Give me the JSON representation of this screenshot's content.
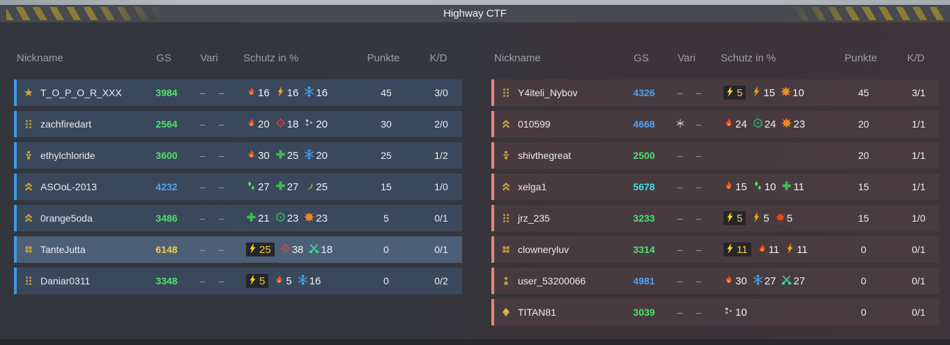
{
  "title": "Highway CTF",
  "columns": {
    "nickname": "Nickname",
    "gs": "GS",
    "vari": "Vari",
    "schutz": "Schutz in %",
    "punkte": "Punkte",
    "kd": "K/D"
  },
  "colors": {
    "team_left_accent": "#3e9ae0",
    "team_right_accent": "#e8837f",
    "gs_green": "#4de36a",
    "gs_blue": "#4da4f5",
    "gs_cyan": "#3fdde2",
    "gs_yellow": "#f5d340",
    "titlebar": "#46494f",
    "hazard_yellow": "#8e7c33"
  },
  "teams": [
    {
      "side": "left",
      "players": [
        {
          "rank_icon": "star",
          "nickname": "T_O_P_O_R_XXX",
          "gs": "3984",
          "gs_color": "green",
          "vari": [
            "dash",
            "dash"
          ],
          "schutz": [
            {
              "icon": "fire",
              "value": "16"
            },
            {
              "icon": "bolt",
              "value": "16"
            },
            {
              "icon": "snowflake",
              "value": "16"
            }
          ],
          "punkte": "45",
          "kd": "3/0",
          "highlight": false
        },
        {
          "rank_icon": "dots-six",
          "nickname": "zachfiredart",
          "gs": "2564",
          "gs_color": "green",
          "vari": [
            "dash",
            "dash"
          ],
          "schutz": [
            {
              "icon": "fire",
              "value": "20"
            },
            {
              "icon": "target",
              "value": "18"
            },
            {
              "icon": "dots",
              "value": "20"
            }
          ],
          "punkte": "30",
          "kd": "2/0",
          "highlight": false
        },
        {
          "rank_icon": "tower",
          "nickname": "ethylchloride",
          "gs": "3600",
          "gs_color": "green",
          "vari": [
            "dash",
            "dash"
          ],
          "schutz": [
            {
              "icon": "fire",
              "value": "30"
            },
            {
              "icon": "plus",
              "value": "25"
            },
            {
              "icon": "snowflake",
              "value": "20"
            }
          ],
          "punkte": "25",
          "kd": "1/2",
          "highlight": false
        },
        {
          "rank_icon": "chevrons",
          "nickname": "ASOoL-2013",
          "gs": "4232",
          "gs_color": "blue",
          "vari": [
            "dash",
            "dash"
          ],
          "schutz": [
            {
              "icon": "drops",
              "value": "27"
            },
            {
              "icon": "plus",
              "value": "27"
            },
            {
              "icon": "banana",
              "value": "25"
            }
          ],
          "punkte": "15",
          "kd": "1/0",
          "highlight": false
        },
        {
          "rank_icon": "chevrons",
          "nickname": "0range5oda",
          "gs": "3486",
          "gs_color": "green",
          "vari": [
            "dash",
            "dash"
          ],
          "schutz": [
            {
              "icon": "plus",
              "value": "21"
            },
            {
              "icon": "hexagon",
              "value": "23"
            },
            {
              "icon": "star8",
              "value": "23"
            }
          ],
          "punkte": "5",
          "kd": "0/1",
          "highlight": false
        },
        {
          "rank_icon": "squares-four",
          "nickname": "TanteJutta",
          "gs": "6148",
          "gs_color": "yellow",
          "vari": [
            "dash",
            "dash"
          ],
          "schutz": [
            {
              "icon": "bolt-boxed",
              "value": "25"
            },
            {
              "icon": "target",
              "value": "38"
            },
            {
              "icon": "scissors",
              "value": "18"
            }
          ],
          "punkte": "0",
          "kd": "0/1",
          "highlight": true
        },
        {
          "rank_icon": "dots-six",
          "nickname": "Daniar0311",
          "gs": "3348",
          "gs_color": "green",
          "vari": [
            "dash",
            "dash"
          ],
          "schutz": [
            {
              "icon": "bolt-boxed",
              "value": "5"
            },
            {
              "icon": "fire",
              "value": "5"
            },
            {
              "icon": "snowflake",
              "value": "16"
            }
          ],
          "punkte": "0",
          "kd": "0/2",
          "highlight": false
        }
      ]
    },
    {
      "side": "right",
      "players": [
        {
          "rank_icon": "dots-six",
          "nickname": "Y4iteli_Nybov",
          "gs": "4326",
          "gs_color": "blue",
          "vari": [
            "dash",
            "dash"
          ],
          "schutz": [
            {
              "icon": "bolt-boxed",
              "value": "5"
            },
            {
              "icon": "bolt",
              "value": "15"
            },
            {
              "icon": "star8",
              "value": "10"
            }
          ],
          "punkte": "45",
          "kd": "3/1",
          "highlight": false
        },
        {
          "rank_icon": "chevrons",
          "nickname": "010599",
          "gs": "4668",
          "gs_color": "blue",
          "vari": [
            "spark",
            "dash"
          ],
          "schutz": [
            {
              "icon": "fire",
              "value": "24"
            },
            {
              "icon": "hexagon",
              "value": "24"
            },
            {
              "icon": "star8",
              "value": "23"
            }
          ],
          "punkte": "20",
          "kd": "1/1",
          "highlight": false
        },
        {
          "rank_icon": "tower",
          "nickname": "shivthegreat",
          "gs": "2500",
          "gs_color": "green",
          "vari": [
            "dash",
            "dash"
          ],
          "schutz": [],
          "punkte": "20",
          "kd": "1/1",
          "highlight": false
        },
        {
          "rank_icon": "chevrons",
          "nickname": "xelga1",
          "gs": "5678",
          "gs_color": "cyan",
          "vari": [
            "dash",
            "dash"
          ],
          "schutz": [
            {
              "icon": "fire",
              "value": "15"
            },
            {
              "icon": "drops",
              "value": "10"
            },
            {
              "icon": "plus",
              "value": "11"
            }
          ],
          "punkte": "15",
          "kd": "1/1",
          "highlight": false
        },
        {
          "rank_icon": "dots-six",
          "nickname": "jrz_235",
          "gs": "3233",
          "gs_color": "green",
          "vari": [
            "dash",
            "dash"
          ],
          "schutz": [
            {
              "icon": "bolt-boxed",
              "value": "5"
            },
            {
              "icon": "bolt",
              "value": "5"
            },
            {
              "icon": "burst",
              "value": "5"
            }
          ],
          "punkte": "15",
          "kd": "1/0",
          "highlight": false
        },
        {
          "rank_icon": "squares-four",
          "nickname": "clowneryluv",
          "gs": "3314",
          "gs_color": "green",
          "vari": [
            "dash",
            "dash"
          ],
          "schutz": [
            {
              "icon": "bolt-boxed",
              "value": "11"
            },
            {
              "icon": "fire",
              "value": "11"
            },
            {
              "icon": "bolt",
              "value": "11"
            }
          ],
          "punkte": "0",
          "kd": "0/1",
          "highlight": false
        },
        {
          "rank_icon": "pawn",
          "nickname": "user_53200066",
          "gs": "4981",
          "gs_color": "blue",
          "vari": [
            "dash",
            "dash"
          ],
          "schutz": [
            {
              "icon": "fire",
              "value": "30"
            },
            {
              "icon": "snowflake",
              "value": "27"
            },
            {
              "icon": "scissors",
              "value": "27"
            }
          ],
          "punkte": "0",
          "kd": "0/1",
          "highlight": false
        },
        {
          "rank_icon": "diamond",
          "nickname": "TITAN81",
          "gs": "3039",
          "gs_color": "green",
          "vari": [
            "dash",
            "dash"
          ],
          "schutz": [
            {
              "icon": "dots",
              "value": "10"
            }
          ],
          "punkte": "0",
          "kd": "0/1",
          "highlight": false
        }
      ]
    }
  ]
}
